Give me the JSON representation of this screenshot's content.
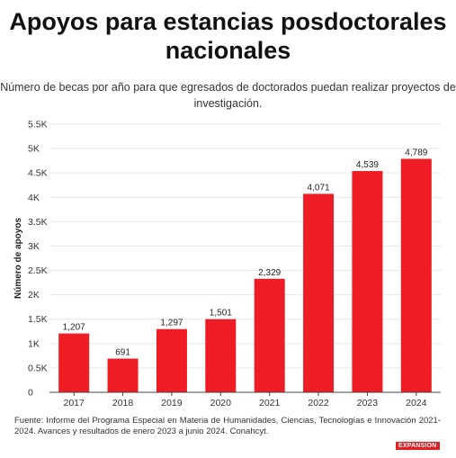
{
  "title": "Apoyos para estancias posdoctorales nacionales",
  "subtitle": "Número de becas por año para que egresados de doctorados puedan realizar proyectos de investigación.",
  "source": "Fuente: Informe del Programa Especial en Materia de Humanidades, Ciencias, Tecnologías e Innovación 2021-2024. Avances y resultados de enero 2023 a junio 2024. Conahcyt.",
  "logo": "EXPANSION",
  "colors": {
    "bar": "#ee1c25",
    "grid": "#e6e6e6",
    "axis": "#444444"
  },
  "chart_data": {
    "type": "bar",
    "title": "Apoyos para estancias posdoctorales nacionales",
    "subtitle": "Número de becas por año para que egresados de doctorados puedan realizar proyectos de investigación.",
    "xlabel": "",
    "ylabel": "Número de apoyos",
    "ylim": [
      0,
      5500
    ],
    "grid": true,
    "yticks": [
      0,
      500,
      1000,
      1500,
      2000,
      2500,
      3000,
      3500,
      4000,
      4500,
      5000,
      5500
    ],
    "ytick_labels": [
      "0",
      "0.5K",
      "1K",
      "1.5K",
      "2K",
      "2.5K",
      "3K",
      "3.5K",
      "4K",
      "4.5K",
      "5K",
      "5.5K"
    ],
    "categories": [
      "2017",
      "2018",
      "2019",
      "2020",
      "2021",
      "2022",
      "2023",
      "2024"
    ],
    "values": [
      1207,
      691,
      1297,
      1501,
      2329,
      4071,
      4539,
      4789
    ],
    "value_labels": [
      "1,207",
      "691",
      "1,297",
      "1,501",
      "2,329",
      "4,071",
      "4,539",
      "4,789"
    ]
  }
}
